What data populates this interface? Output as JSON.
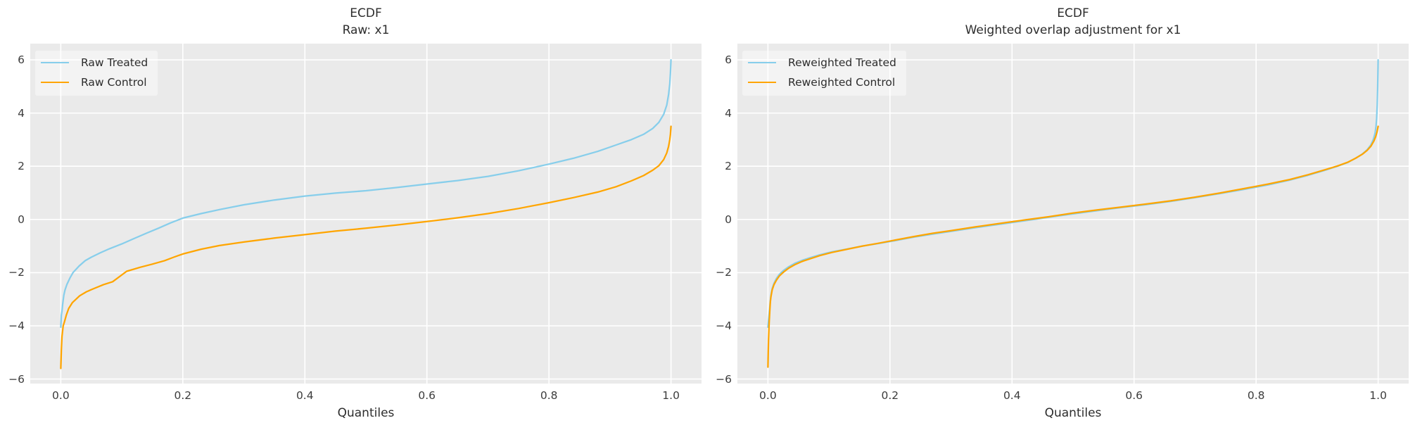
{
  "figure": {
    "bg": "#ffffff",
    "panel_bg": "#eaeaea",
    "grid_color": "#ffffff",
    "text_color": "#2d2d2d",
    "tick_color": "#3c3c3c",
    "treated_color": "#87CEEB",
    "control_color": "#FFA500"
  },
  "chart_data": [
    {
      "type": "line",
      "title": "ECDF",
      "subtitle": "Raw: x1",
      "xlabel": "Quantiles",
      "grid": true,
      "legend_position": "upper left",
      "xlim": [
        -0.05,
        1.05
      ],
      "ylim": [
        -6.17,
        6.61
      ],
      "x_ticks": [
        {
          "v": 0.0,
          "label": "0.0"
        },
        {
          "v": 0.2,
          "label": "0.2"
        },
        {
          "v": 0.4,
          "label": "0.4"
        },
        {
          "v": 0.6,
          "label": "0.6"
        },
        {
          "v": 0.8,
          "label": "0.8"
        },
        {
          "v": 1.0,
          "label": "1.0"
        }
      ],
      "y_ticks": [
        {
          "v": 6,
          "label": "6"
        },
        {
          "v": 4,
          "label": "4"
        },
        {
          "v": 2,
          "label": "2"
        },
        {
          "v": 0,
          "label": "0"
        },
        {
          "v": -2,
          "label": "−2"
        },
        {
          "v": -4,
          "label": "−4"
        },
        {
          "v": -6,
          "label": "−6"
        }
      ],
      "series": [
        {
          "name": "Raw Treated",
          "color": "#87CEEB",
          "points": [
            [
              0,
              -4.05
            ],
            [
              0.001,
              -3.6
            ],
            [
              0.002,
              -3.45
            ],
            [
              0.003,
              -3.2
            ],
            [
              0.005,
              -2.85
            ],
            [
              0.007,
              -2.65
            ],
            [
              0.01,
              -2.45
            ],
            [
              0.015,
              -2.2
            ],
            [
              0.02,
              -2.0
            ],
            [
              0.03,
              -1.75
            ],
            [
              0.04,
              -1.55
            ],
            [
              0.05,
              -1.42
            ],
            [
              0.065,
              -1.25
            ],
            [
              0.08,
              -1.1
            ],
            [
              0.1,
              -0.92
            ],
            [
              0.12,
              -0.72
            ],
            [
              0.14,
              -0.52
            ],
            [
              0.16,
              -0.33
            ],
            [
              0.18,
              -0.13
            ],
            [
              0.2,
              0.05
            ],
            [
              0.23,
              0.22
            ],
            [
              0.26,
              0.37
            ],
            [
              0.3,
              0.55
            ],
            [
              0.35,
              0.73
            ],
            [
              0.4,
              0.88
            ],
            [
              0.45,
              0.99
            ],
            [
              0.5,
              1.08
            ],
            [
              0.55,
              1.2
            ],
            [
              0.6,
              1.33
            ],
            [
              0.65,
              1.46
            ],
            [
              0.7,
              1.62
            ],
            [
              0.75,
              1.83
            ],
            [
              0.8,
              2.08
            ],
            [
              0.84,
              2.3
            ],
            [
              0.88,
              2.56
            ],
            [
              0.91,
              2.8
            ],
            [
              0.935,
              3.0
            ],
            [
              0.955,
              3.2
            ],
            [
              0.97,
              3.42
            ],
            [
              0.98,
              3.65
            ],
            [
              0.988,
              3.95
            ],
            [
              0.993,
              4.3
            ],
            [
              0.996,
              4.7
            ],
            [
              0.998,
              5.1
            ],
            [
              0.999,
              5.5
            ],
            [
              1,
              6.0
            ]
          ]
        },
        {
          "name": "Raw Control",
          "color": "#FFA500",
          "points": [
            [
              0,
              -5.6
            ],
            [
              0.001,
              -4.9
            ],
            [
              0.002,
              -4.4
            ],
            [
              0.004,
              -4.0
            ],
            [
              0.006,
              -3.85
            ],
            [
              0.009,
              -3.6
            ],
            [
              0.013,
              -3.35
            ],
            [
              0.019,
              -3.13
            ],
            [
              0.025,
              -3.0
            ],
            [
              0.031,
              -2.87
            ],
            [
              0.042,
              -2.72
            ],
            [
              0.054,
              -2.6
            ],
            [
              0.07,
              -2.45
            ],
            [
              0.085,
              -2.34
            ],
            [
              0.108,
              -1.95
            ],
            [
              0.13,
              -1.8
            ],
            [
              0.15,
              -1.68
            ],
            [
              0.17,
              -1.55
            ],
            [
              0.185,
              -1.42
            ],
            [
              0.2,
              -1.3
            ],
            [
              0.23,
              -1.12
            ],
            [
              0.26,
              -0.98
            ],
            [
              0.3,
              -0.85
            ],
            [
              0.35,
              -0.7
            ],
            [
              0.4,
              -0.57
            ],
            [
              0.45,
              -0.44
            ],
            [
              0.5,
              -0.33
            ],
            [
              0.55,
              -0.21
            ],
            [
              0.6,
              -0.08
            ],
            [
              0.65,
              0.06
            ],
            [
              0.7,
              0.22
            ],
            [
              0.75,
              0.41
            ],
            [
              0.8,
              0.63
            ],
            [
              0.84,
              0.82
            ],
            [
              0.88,
              1.03
            ],
            [
              0.91,
              1.23
            ],
            [
              0.935,
              1.45
            ],
            [
              0.955,
              1.65
            ],
            [
              0.97,
              1.85
            ],
            [
              0.98,
              2.02
            ],
            [
              0.988,
              2.25
            ],
            [
              0.993,
              2.5
            ],
            [
              0.996,
              2.75
            ],
            [
              0.998,
              3.0
            ],
            [
              0.999,
              3.2
            ],
            [
              1,
              3.5
            ]
          ]
        }
      ]
    },
    {
      "type": "line",
      "title": "ECDF",
      "subtitle": "Weighted overlap adjustment for x1",
      "xlabel": "Quantiles",
      "grid": true,
      "legend_position": "upper left",
      "xlim": [
        -0.05,
        1.05
      ],
      "ylim": [
        -6.17,
        6.61
      ],
      "x_ticks": [
        {
          "v": 0.0,
          "label": "0.0"
        },
        {
          "v": 0.2,
          "label": "0.2"
        },
        {
          "v": 0.4,
          "label": "0.4"
        },
        {
          "v": 0.6,
          "label": "0.6"
        },
        {
          "v": 0.8,
          "label": "0.8"
        },
        {
          "v": 1.0,
          "label": "1.0"
        }
      ],
      "y_ticks": [
        {
          "v": 6,
          "label": "6"
        },
        {
          "v": 4,
          "label": "4"
        },
        {
          "v": 2,
          "label": "2"
        },
        {
          "v": 0,
          "label": "0"
        },
        {
          "v": -2,
          "label": "−2"
        },
        {
          "v": -4,
          "label": "−4"
        },
        {
          "v": -6,
          "label": "−6"
        }
      ],
      "series": [
        {
          "name": "Reweighted Treated",
          "color": "#87CEEB",
          "points": [
            [
              0,
              -4.05
            ],
            [
              0.001,
              -3.8
            ],
            [
              0.002,
              -3.55
            ],
            [
              0.003,
              -3.3
            ],
            [
              0.004,
              -3.05
            ],
            [
              0.005,
              -2.85
            ],
            [
              0.007,
              -2.6
            ],
            [
              0.01,
              -2.4
            ],
            [
              0.014,
              -2.22
            ],
            [
              0.019,
              -2.06
            ],
            [
              0.026,
              -1.91
            ],
            [
              0.034,
              -1.78
            ],
            [
              0.044,
              -1.65
            ],
            [
              0.056,
              -1.54
            ],
            [
              0.07,
              -1.43
            ],
            [
              0.085,
              -1.33
            ],
            [
              0.105,
              -1.22
            ],
            [
              0.13,
              -1.11
            ],
            [
              0.155,
              -1.0
            ],
            [
              0.18,
              -0.91
            ],
            [
              0.21,
              -0.79
            ],
            [
              0.24,
              -0.66
            ],
            [
              0.27,
              -0.55
            ],
            [
              0.3,
              -0.45
            ],
            [
              0.34,
              -0.31
            ],
            [
              0.38,
              -0.18
            ],
            [
              0.42,
              -0.05
            ],
            [
              0.46,
              0.08
            ],
            [
              0.5,
              0.21
            ],
            [
              0.54,
              0.33
            ],
            [
              0.58,
              0.45
            ],
            [
              0.62,
              0.56
            ],
            [
              0.66,
              0.68
            ],
            [
              0.7,
              0.82
            ],
            [
              0.74,
              0.97
            ],
            [
              0.78,
              1.13
            ],
            [
              0.82,
              1.3
            ],
            [
              0.855,
              1.48
            ],
            [
              0.885,
              1.66
            ],
            [
              0.91,
              1.83
            ],
            [
              0.932,
              1.99
            ],
            [
              0.95,
              2.14
            ],
            [
              0.963,
              2.3
            ],
            [
              0.974,
              2.46
            ],
            [
              0.982,
              2.62
            ],
            [
              0.988,
              2.8
            ],
            [
              0.992,
              3.0
            ],
            [
              0.995,
              3.25
            ],
            [
              0.9965,
              3.5
            ],
            [
              0.9975,
              3.8
            ],
            [
              0.9985,
              4.3
            ],
            [
              0.9992,
              4.9
            ],
            [
              0.9996,
              5.5
            ],
            [
              1,
              6.0
            ]
          ]
        },
        {
          "name": "Reweighted Control",
          "color": "#FFA500",
          "points": [
            [
              0,
              -5.55
            ],
            [
              0.0005,
              -5.0
            ],
            [
              0.001,
              -4.55
            ],
            [
              0.0015,
              -4.2
            ],
            [
              0.002,
              -3.9
            ],
            [
              0.003,
              -3.45
            ],
            [
              0.004,
              -3.1
            ],
            [
              0.005,
              -2.9
            ],
            [
              0.007,
              -2.65
            ],
            [
              0.01,
              -2.45
            ],
            [
              0.014,
              -2.28
            ],
            [
              0.019,
              -2.12
            ],
            [
              0.026,
              -1.97
            ],
            [
              0.034,
              -1.83
            ],
            [
              0.044,
              -1.7
            ],
            [
              0.056,
              -1.58
            ],
            [
              0.07,
              -1.47
            ],
            [
              0.085,
              -1.36
            ],
            [
              0.105,
              -1.24
            ],
            [
              0.13,
              -1.12
            ],
            [
              0.155,
              -1.0
            ],
            [
              0.18,
              -0.9
            ],
            [
              0.21,
              -0.77
            ],
            [
              0.24,
              -0.64
            ],
            [
              0.27,
              -0.52
            ],
            [
              0.3,
              -0.42
            ],
            [
              0.34,
              -0.28
            ],
            [
              0.38,
              -0.15
            ],
            [
              0.42,
              -0.02
            ],
            [
              0.46,
              0.1
            ],
            [
              0.5,
              0.24
            ],
            [
              0.54,
              0.36
            ],
            [
              0.58,
              0.47
            ],
            [
              0.62,
              0.58
            ],
            [
              0.66,
              0.7
            ],
            [
              0.7,
              0.84
            ],
            [
              0.74,
              0.99
            ],
            [
              0.78,
              1.16
            ],
            [
              0.82,
              1.33
            ],
            [
              0.855,
              1.5
            ],
            [
              0.885,
              1.68
            ],
            [
              0.91,
              1.85
            ],
            [
              0.932,
              2.0
            ],
            [
              0.95,
              2.15
            ],
            [
              0.963,
              2.3
            ],
            [
              0.974,
              2.45
            ],
            [
              0.982,
              2.6
            ],
            [
              0.988,
              2.75
            ],
            [
              0.993,
              2.95
            ],
            [
              0.996,
              3.12
            ],
            [
              0.998,
              3.28
            ],
            [
              1,
              3.5
            ]
          ]
        }
      ]
    }
  ]
}
